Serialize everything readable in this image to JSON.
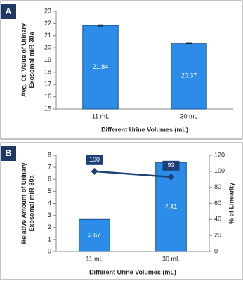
{
  "chart_data": [
    {
      "type": "bar",
      "label": "A",
      "ylabel": [
        "Avg. Ct. Value of Urinary",
        "Exosomal miR-30a"
      ],
      "xlabel": "Different Urine Volumes (mL)",
      "categories": [
        "11 mL",
        "30 mL"
      ],
      "series": [
        {
          "values": [
            21.84,
            20.37
          ],
          "errors": [
            0.05,
            0.03
          ],
          "color": "#2b8de8"
        }
      ],
      "ylim": [
        15,
        23
      ],
      "yticks": [
        15,
        16,
        17,
        18,
        19,
        20,
        21,
        22,
        23
      ],
      "grid": false
    },
    {
      "type": "bar",
      "label": "B",
      "ylabel": [
        "Relative Amount of Urinary",
        "Exosomal miR-30a"
      ],
      "y2label": "% of Linearity",
      "xlabel": "Different Urine Volumes (mL)",
      "categories": [
        "11 mL",
        "30 mL"
      ],
      "series": [
        {
          "values": [
            2.67,
            7.41
          ],
          "color": "#2b8de8"
        },
        {
          "values": [
            100,
            93
          ],
          "color": "#1f3f77",
          "type": "line",
          "axis": "y2"
        }
      ],
      "ylim": [
        0,
        8
      ],
      "yticks": [
        0,
        1,
        2,
        3,
        4,
        5,
        6,
        7,
        8
      ],
      "y2lim": [
        0,
        120
      ],
      "y2ticks": [
        0,
        20,
        40,
        60,
        80,
        100,
        120
      ],
      "grid": false
    }
  ]
}
